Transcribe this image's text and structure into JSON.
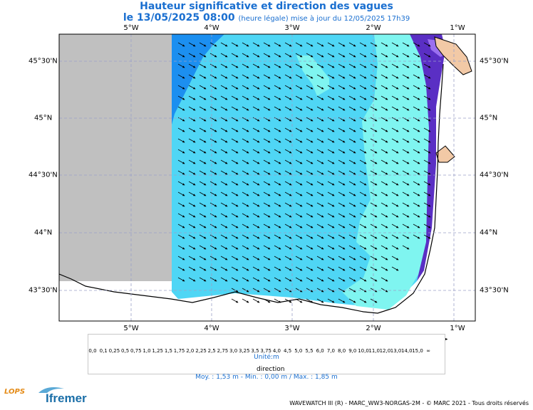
{
  "header": {
    "title": "Hauteur significative et direction des vagues",
    "date_label": "le 13/05/2025 08:00",
    "update_note": "(heure légale) mise à jour du 12/05/2025 17h39"
  },
  "map": {
    "lon_labels": [
      "5°W",
      "4°W",
      "3°W",
      "2°W",
      "1°W"
    ],
    "lat_labels": [
      "45°30'N",
      "45°N",
      "44°30'N",
      "44°N",
      "43°30'N"
    ],
    "colors": {
      "land": "#f2c9a6",
      "nodata": "#c0c0c0",
      "frame": "#000000",
      "arrow": "#000000",
      "grid": "#9aa0c8"
    }
  },
  "legend": {
    "unit_label": "Unité:m",
    "direction_label": "direction",
    "ticks": [
      "0,0",
      "0,1",
      "0,25",
      "0,5",
      "0,75",
      "1,0",
      "1,25",
      "1,5",
      "1,75",
      "2,0",
      "2,25",
      "2,5",
      "2,75",
      "3,0",
      "3,25",
      "3,5",
      "3,75",
      "4,0",
      "4,5",
      "5,0",
      "5,5",
      "6,0",
      "7,0",
      "8,0",
      "9,0",
      "10,0",
      "11,0",
      "12,0",
      "13,0",
      "14,0",
      "15,0",
      "∞"
    ],
    "swatches": [
      "#e6d9cf",
      "#d7c4b7",
      "#c9afa3",
      "#bf9fe6",
      "#9a6ff0",
      "#7a4ed8",
      "#5a2fc4",
      "#7ff5f0",
      "#4fd6f5",
      "#2fb1f5",
      "#1c8ff0",
      "#1464d8",
      "#c9f58a",
      "#9cf060",
      "#5fe04a",
      "#2fd23a",
      "#1abf6e",
      "#19a39a",
      "#f5f566",
      "#f5d21c",
      "#f5a31c",
      "#f57a1c",
      "#f5b1c9",
      "#f2789a",
      "#e0405a",
      "#c21f2f",
      "#a85a28",
      "#8a3d17",
      "#9a0f0f",
      "#6a0a0a",
      "#9a0a5a",
      "#c8167a"
    ]
  },
  "stats": {
    "text": "Moy. : 1,53 m   -   Min. : 0,00 m / Max. : 1,85 m"
  },
  "footer": {
    "text": "WAVEWATCH III (R) - MARC_WW3-NORGAS-2M - © MARC 2021 - Tous droits réservés"
  },
  "logos": {
    "lops": "LOPS",
    "ifremer": "Ifremer"
  }
}
